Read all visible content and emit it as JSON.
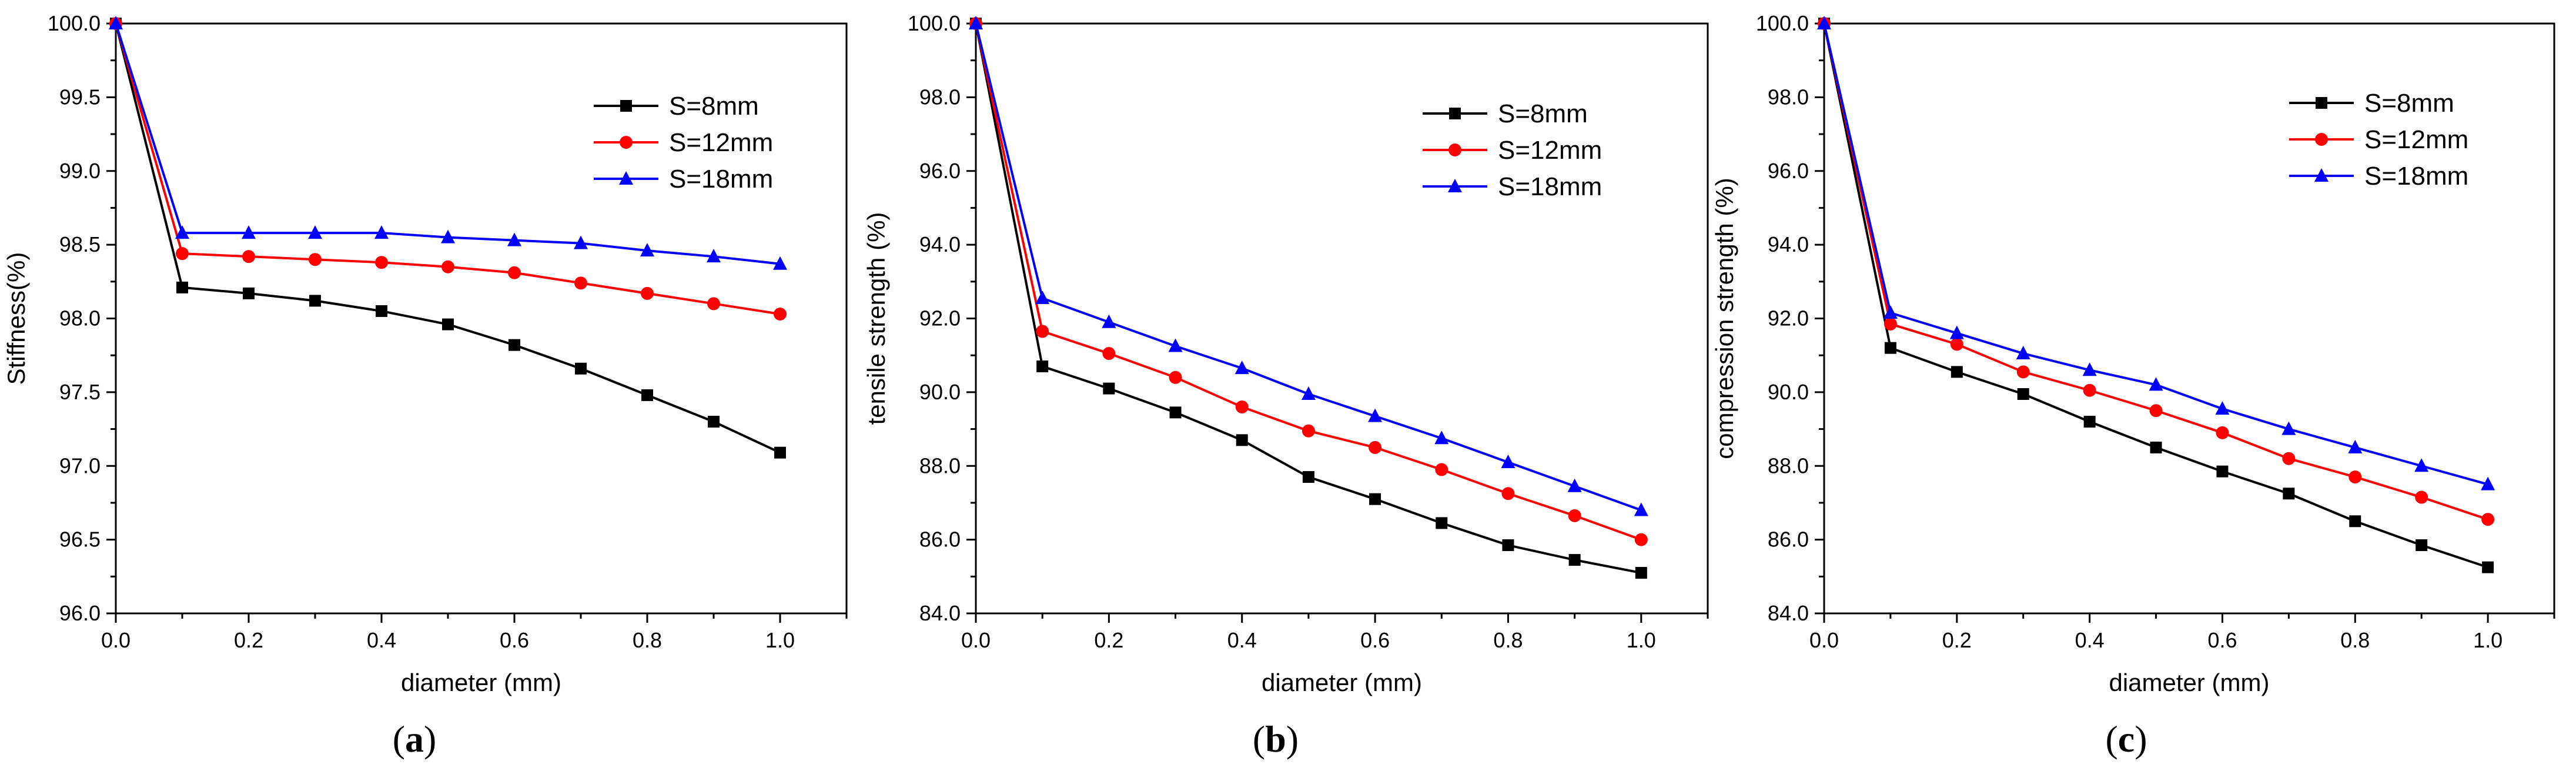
{
  "colors": {
    "S8": "#000000",
    "S12": "#ff0000",
    "S18": "#0000ff",
    "axis": "#000000",
    "background": "#ffffff"
  },
  "chart_data": [
    {
      "id": "a",
      "type": "line",
      "caption": {
        "open": "(",
        "letter": "a",
        "close": ")"
      },
      "xlabel": "diameter (mm)",
      "ylabel": "Stiffness(%)",
      "xlim": [
        0,
        1.1
      ],
      "ylim": [
        96.0,
        100.0
      ],
      "xticks": [
        0.0,
        0.2,
        0.4,
        0.6,
        0.8,
        1.0
      ],
      "xtick_labels": [
        "0.0",
        "0.2",
        "0.4",
        "0.6",
        "0.8",
        "1.0"
      ],
      "yticks": [
        96.0,
        96.5,
        97.0,
        97.5,
        98.0,
        98.5,
        99.0,
        99.5,
        100.0
      ],
      "ytick_labels": [
        "96.0",
        "96.5",
        "97.0",
        "97.5",
        "98.0",
        "98.5",
        "99.0",
        "99.5",
        "100.0"
      ],
      "legend_position": "top-right",
      "x": [
        0,
        0.1,
        0.2,
        0.3,
        0.4,
        0.5,
        0.6,
        0.7,
        0.8,
        0.9,
        1.0
      ],
      "series": [
        {
          "key": "S8",
          "name": "S=8mm",
          "marker": "square",
          "values": [
            100.0,
            98.21,
            98.17,
            98.12,
            98.05,
            97.96,
            97.82,
            97.66,
            97.48,
            97.3,
            97.09
          ]
        },
        {
          "key": "S12",
          "name": "S=12mm",
          "marker": "circle",
          "values": [
            100.0,
            98.44,
            98.42,
            98.4,
            98.38,
            98.35,
            98.31,
            98.24,
            98.17,
            98.1,
            98.03
          ]
        },
        {
          "key": "S18",
          "name": "S=18mm",
          "marker": "triangle",
          "values": [
            100.0,
            98.58,
            98.58,
            98.58,
            98.58,
            98.55,
            98.53,
            98.51,
            98.46,
            98.42,
            98.37
          ]
        }
      ]
    },
    {
      "id": "b",
      "type": "line",
      "caption": {
        "open": "(",
        "letter": "b",
        "close": ")"
      },
      "xlabel": "diameter (mm)",
      "ylabel": "tensile strength (%)",
      "xlim": [
        0,
        1.1
      ],
      "ylim": [
        84.0,
        100.0
      ],
      "xticks": [
        0.0,
        0.2,
        0.4,
        0.6,
        0.8,
        1.0
      ],
      "xtick_labels": [
        "0.0",
        "0.2",
        "0.4",
        "0.6",
        "0.8",
        "1.0"
      ],
      "yticks": [
        84,
        86,
        88,
        90,
        92,
        94,
        96,
        98,
        100
      ],
      "ytick_labels": [
        "84.0",
        "86.0",
        "88.0",
        "90.0",
        "92.0",
        "94.0",
        "96.0",
        "98.0",
        "100.0"
      ],
      "legend_position": "top-right",
      "x": [
        0,
        0.1,
        0.2,
        0.3,
        0.4,
        0.5,
        0.6,
        0.7,
        0.8,
        0.9,
        1.0
      ],
      "series": [
        {
          "key": "S8",
          "name": "S=8mm",
          "marker": "square",
          "values": [
            100.0,
            90.7,
            90.1,
            89.45,
            88.7,
            87.7,
            87.1,
            86.45,
            85.85,
            85.45,
            85.1
          ]
        },
        {
          "key": "S12",
          "name": "S=12mm",
          "marker": "circle",
          "values": [
            100.0,
            91.65,
            91.05,
            90.4,
            89.6,
            88.95,
            88.5,
            87.9,
            87.25,
            86.65,
            86.0
          ]
        },
        {
          "key": "S18",
          "name": "S=18mm",
          "marker": "triangle",
          "values": [
            100.0,
            92.55,
            91.9,
            91.25,
            90.65,
            89.95,
            89.35,
            88.75,
            88.1,
            87.45,
            86.8
          ]
        }
      ]
    },
    {
      "id": "c",
      "type": "line",
      "caption": {
        "open": "(",
        "letter": "c",
        "close": ")"
      },
      "xlabel": "diameter (mm)",
      "ylabel": "compression strength (%)",
      "xlim": [
        0,
        1.1
      ],
      "ylim": [
        84.0,
        100.0
      ],
      "xticks": [
        0.0,
        0.2,
        0.4,
        0.6,
        0.8,
        1.0
      ],
      "xtick_labels": [
        "0.0",
        "0.2",
        "0.4",
        "0.6",
        "0.8",
        "1.0"
      ],
      "yticks": [
        84,
        86,
        88,
        90,
        92,
        94,
        96,
        98,
        100
      ],
      "ytick_labels": [
        "84.0",
        "86.0",
        "88.0",
        "90.0",
        "92.0",
        "94.0",
        "96.0",
        "98.0",
        "100.0"
      ],
      "legend_position": "top-right",
      "x": [
        0,
        0.1,
        0.2,
        0.3,
        0.4,
        0.5,
        0.6,
        0.7,
        0.8,
        0.9,
        1.0
      ],
      "series": [
        {
          "key": "S8",
          "name": "S=8mm",
          "marker": "square",
          "values": [
            100.0,
            91.2,
            90.55,
            89.95,
            89.2,
            88.5,
            87.85,
            87.25,
            86.5,
            85.85,
            85.25
          ]
        },
        {
          "key": "S12",
          "name": "S=12mm",
          "marker": "circle",
          "values": [
            100.0,
            91.85,
            91.3,
            90.55,
            90.05,
            89.5,
            88.9,
            88.2,
            87.7,
            87.15,
            86.55
          ]
        },
        {
          "key": "S18",
          "name": "S=18mm",
          "marker": "triangle",
          "values": [
            100.0,
            92.15,
            91.6,
            91.05,
            90.6,
            90.2,
            89.55,
            89.0,
            88.5,
            88.0,
            87.5
          ]
        }
      ]
    }
  ]
}
